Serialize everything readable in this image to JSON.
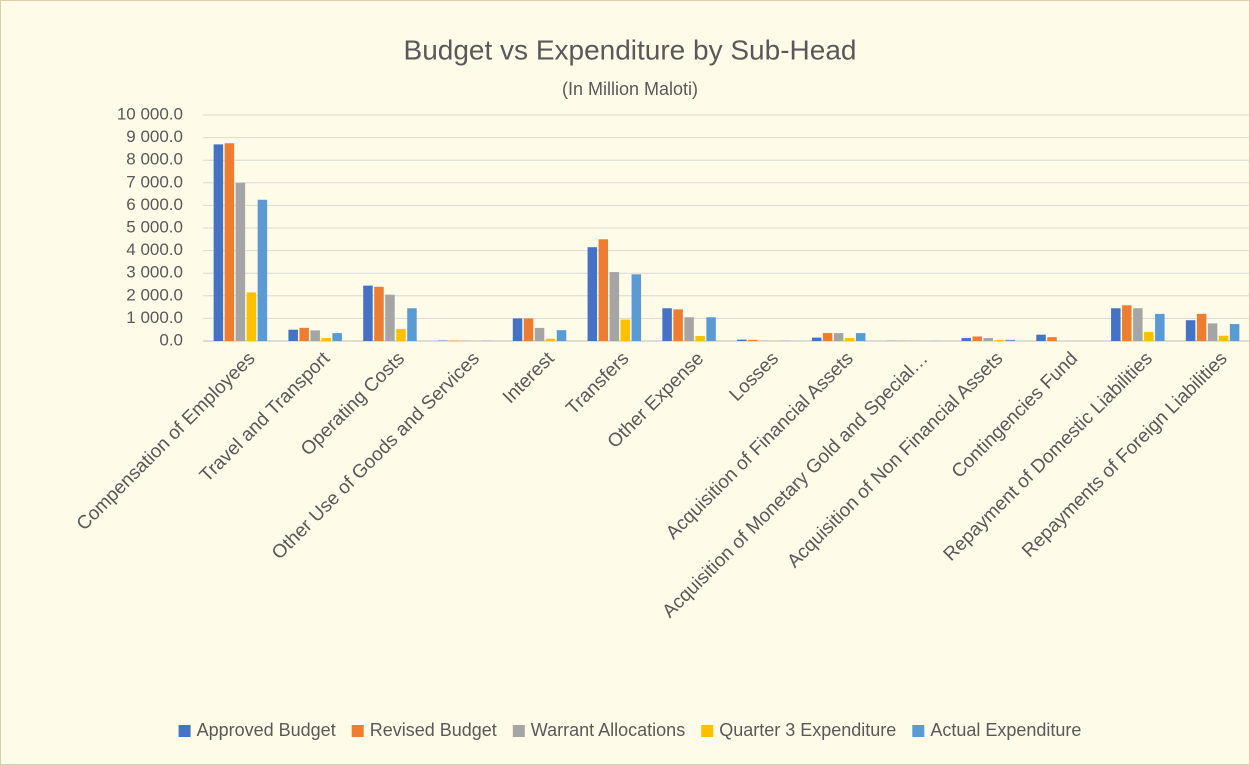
{
  "chart_data": {
    "type": "bar",
    "title": "Budget vs Expenditure by Sub-Head",
    "subtitle": "(In Million Maloti)",
    "categories": [
      "Compensation of Employees",
      "Travel and Transport",
      "Operating Costs",
      "Other Use of Goods and Services",
      "Interest",
      "Transfers",
      "Other Expense",
      "Losses",
      "Acquisition of Financial Assets",
      "Acquisition of Monetary Gold and Special…",
      "Acquisition of Non Financial Assets",
      "Contingencies Fund",
      "Repayment of Domestic Liabilities",
      "Repayments of Foreign Liabilities"
    ],
    "series": [
      {
        "name": "Approved Budget",
        "color": "#4472c4",
        "values": [
          8700,
          500,
          2450,
          20,
          1000,
          4150,
          1450,
          60,
          150,
          10,
          130,
          280,
          1450,
          920
        ]
      },
      {
        "name": "Revised Budget",
        "color": "#ed7d31",
        "values": [
          8750,
          580,
          2400,
          20,
          1000,
          4500,
          1400,
          50,
          350,
          10,
          200,
          170,
          1580,
          1200
        ]
      },
      {
        "name": "Warrant Allocations",
        "color": "#a5a5a5",
        "values": [
          7000,
          470,
          2050,
          15,
          580,
          3050,
          1050,
          20,
          350,
          10,
          130,
          0,
          1450,
          780
        ]
      },
      {
        "name": "Quarter 3 Expenditure",
        "color": "#ffc000",
        "values": [
          2150,
          130,
          530,
          5,
          100,
          950,
          220,
          5,
          130,
          0,
          40,
          0,
          400,
          230
        ]
      },
      {
        "name": "Actual Expenditure",
        "color": "#5b9bd5",
        "values": [
          6250,
          350,
          1450,
          10,
          480,
          2950,
          1050,
          10,
          350,
          5,
          50,
          0,
          1200,
          750
        ]
      }
    ],
    "ylim": [
      0,
      10000
    ],
    "yticks": [
      {
        "value": 0,
        "label": "0.0"
      },
      {
        "value": 1000,
        "label": "1 000.0"
      },
      {
        "value": 2000,
        "label": "2 000.0"
      },
      {
        "value": 3000,
        "label": "3 000.0"
      },
      {
        "value": 4000,
        "label": "4 000.0"
      },
      {
        "value": 5000,
        "label": "5 000.0"
      },
      {
        "value": 6000,
        "label": "6 000.0"
      },
      {
        "value": 7000,
        "label": "7 000.0"
      },
      {
        "value": 8000,
        "label": "8 000.0"
      },
      {
        "value": 9000,
        "label": "9 000.0"
      },
      {
        "value": 10000,
        "label": "10 000.0"
      }
    ],
    "grid": true,
    "legend": "bottom"
  }
}
